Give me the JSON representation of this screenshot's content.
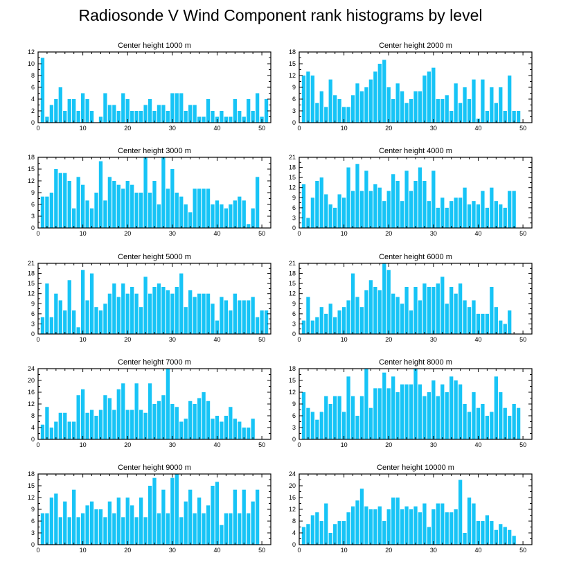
{
  "figure": {
    "title": "Radiosonde V Wind Component rank histograms by level"
  },
  "style": {
    "bar_color": "#17c4f6",
    "axis_color": "#000000",
    "background": "#ffffff"
  },
  "chart_data": [
    {
      "type": "bar",
      "title": "Center height 1000 m",
      "xlabel": "",
      "ylabel": "",
      "xlim": [
        0,
        52
      ],
      "ylim": [
        0,
        12
      ],
      "x_ticks": [
        0,
        10,
        20,
        30,
        40,
        50
      ],
      "y_ticks": [
        0,
        2,
        4,
        6,
        8,
        10,
        12
      ],
      "x": [
        0,
        1,
        2,
        3,
        4,
        5,
        6,
        7,
        8,
        9,
        10,
        11,
        12,
        13,
        14,
        15,
        16,
        17,
        18,
        19,
        20,
        21,
        22,
        23,
        24,
        25,
        26,
        27,
        28,
        29,
        30,
        31,
        32,
        33,
        34,
        35,
        36,
        37,
        38,
        39,
        40,
        41,
        42,
        43,
        44,
        45,
        46,
        47,
        48,
        49,
        50,
        51,
        52
      ],
      "values": [
        0,
        11,
        1,
        3,
        4,
        6,
        2,
        4,
        4,
        2,
        5,
        4,
        2,
        0,
        1,
        5,
        3,
        3,
        2,
        5,
        4,
        2,
        2,
        2,
        3,
        4,
        2,
        3,
        3,
        2,
        5,
        5,
        5,
        2,
        3,
        3,
        1,
        1,
        4,
        2,
        1,
        2,
        1,
        1,
        4,
        2,
        1,
        4,
        2,
        5,
        1,
        4,
        0
      ]
    },
    {
      "type": "bar",
      "title": "Center height 2000 m",
      "xlabel": "",
      "ylabel": "",
      "xlim": [
        0,
        52
      ],
      "ylim": [
        0,
        18
      ],
      "x_ticks": [
        0,
        10,
        20,
        30,
        40,
        50
      ],
      "y_ticks": [
        0,
        3,
        6,
        9,
        12,
        15,
        18
      ],
      "x": [
        0,
        1,
        2,
        3,
        4,
        5,
        6,
        7,
        8,
        9,
        10,
        11,
        12,
        13,
        14,
        15,
        16,
        17,
        18,
        19,
        20,
        21,
        22,
        23,
        24,
        25,
        26,
        27,
        28,
        29,
        30,
        31,
        32,
        33,
        34,
        35,
        36,
        37,
        38,
        39,
        40,
        41,
        42,
        43,
        44,
        45,
        46,
        47,
        48,
        49,
        50,
        51,
        52
      ],
      "values": [
        0,
        12,
        13,
        12,
        5,
        8,
        4,
        11,
        7,
        6,
        4,
        4,
        7,
        10,
        8,
        9,
        11,
        13,
        15,
        16,
        9,
        6,
        10,
        8,
        5,
        6,
        8,
        8,
        12,
        13,
        14,
        6,
        6,
        7,
        3,
        10,
        5,
        9,
        6,
        11,
        1,
        11,
        3,
        9,
        5,
        9,
        3,
        12,
        3,
        3,
        0,
        0,
        0
      ]
    },
    {
      "type": "bar",
      "title": "Center height 3000 m",
      "xlabel": "",
      "ylabel": "",
      "xlim": [
        0,
        52
      ],
      "ylim": [
        0,
        18
      ],
      "x_ticks": [
        0,
        10,
        20,
        30,
        40,
        50
      ],
      "y_ticks": [
        0,
        3,
        6,
        9,
        12,
        15,
        18
      ],
      "x": [
        0,
        1,
        2,
        3,
        4,
        5,
        6,
        7,
        8,
        9,
        10,
        11,
        12,
        13,
        14,
        15,
        16,
        17,
        18,
        19,
        20,
        21,
        22,
        23,
        24,
        25,
        26,
        27,
        28,
        29,
        30,
        31,
        32,
        33,
        34,
        35,
        36,
        37,
        38,
        39,
        40,
        41,
        42,
        43,
        44,
        45,
        46,
        47,
        48,
        49,
        50,
        51,
        52
      ],
      "values": [
        0,
        8,
        8,
        9,
        15,
        14,
        14,
        12,
        5,
        13,
        11,
        7,
        5,
        9,
        17,
        7,
        13,
        12,
        11,
        10,
        12,
        11,
        9,
        9,
        18,
        9,
        12,
        6,
        18,
        10,
        15,
        9,
        8,
        6,
        4,
        10,
        10,
        10,
        10,
        6,
        7,
        6,
        5,
        6,
        7,
        8,
        7,
        1,
        5,
        13,
        0,
        0,
        0
      ]
    },
    {
      "type": "bar",
      "title": "Center height 4000 m",
      "xlabel": "",
      "ylabel": "",
      "xlim": [
        0,
        52
      ],
      "ylim": [
        0,
        21
      ],
      "x_ticks": [
        0,
        10,
        20,
        30,
        40,
        50
      ],
      "y_ticks": [
        0,
        3,
        6,
        9,
        12,
        15,
        18,
        21
      ],
      "x": [
        0,
        1,
        2,
        3,
        4,
        5,
        6,
        7,
        8,
        9,
        10,
        11,
        12,
        13,
        14,
        15,
        16,
        17,
        18,
        19,
        20,
        21,
        22,
        23,
        24,
        25,
        26,
        27,
        28,
        29,
        30,
        31,
        32,
        33,
        34,
        35,
        36,
        37,
        38,
        39,
        40,
        41,
        42,
        43,
        44,
        45,
        46,
        47,
        48,
        49,
        50,
        51,
        52
      ],
      "values": [
        0,
        13,
        3,
        9,
        14,
        15,
        10,
        7,
        6,
        10,
        9,
        18,
        11,
        19,
        11,
        17,
        11,
        13,
        12,
        8,
        11,
        16,
        14,
        8,
        17,
        11,
        14,
        18,
        14,
        8,
        17,
        6,
        9,
        6,
        8,
        9,
        9,
        12,
        7,
        8,
        7,
        11,
        6,
        12,
        8,
        7,
        6,
        11,
        11,
        0,
        0,
        0,
        0
      ]
    },
    {
      "type": "bar",
      "title": "Center height 5000 m",
      "xlabel": "",
      "ylabel": "",
      "xlim": [
        0,
        52
      ],
      "ylim": [
        0,
        21
      ],
      "x_ticks": [
        0,
        10,
        20,
        30,
        40,
        50
      ],
      "y_ticks": [
        0,
        3,
        6,
        9,
        12,
        15,
        18,
        21
      ],
      "x": [
        0,
        1,
        2,
        3,
        4,
        5,
        6,
        7,
        8,
        9,
        10,
        11,
        12,
        13,
        14,
        15,
        16,
        17,
        18,
        19,
        20,
        21,
        22,
        23,
        24,
        25,
        26,
        27,
        28,
        29,
        30,
        31,
        32,
        33,
        34,
        35,
        36,
        37,
        38,
        39,
        40,
        41,
        42,
        43,
        44,
        45,
        46,
        47,
        48,
        49,
        50,
        51,
        52
      ],
      "values": [
        0,
        5,
        15,
        5,
        12,
        10,
        7,
        16,
        7,
        2,
        19,
        10,
        18,
        8,
        7,
        9,
        12,
        15,
        11,
        15,
        12,
        14,
        12,
        8,
        17,
        12,
        14,
        15,
        14,
        13,
        12,
        14,
        18,
        8,
        13,
        11,
        12,
        12,
        12,
        9,
        4,
        11,
        10,
        7,
        12,
        10,
        10,
        10,
        11,
        5,
        7,
        7,
        0
      ]
    },
    {
      "type": "bar",
      "title": "Center height 6000 m",
      "xlabel": "",
      "ylabel": "",
      "xlim": [
        0,
        52
      ],
      "ylim": [
        0,
        21
      ],
      "x_ticks": [
        0,
        10,
        20,
        30,
        40,
        50
      ],
      "y_ticks": [
        0,
        3,
        6,
        9,
        12,
        15,
        18,
        21
      ],
      "x": [
        0,
        1,
        2,
        3,
        4,
        5,
        6,
        7,
        8,
        9,
        10,
        11,
        12,
        13,
        14,
        15,
        16,
        17,
        18,
        19,
        20,
        21,
        22,
        23,
        24,
        25,
        26,
        27,
        28,
        29,
        30,
        31,
        32,
        33,
        34,
        35,
        36,
        37,
        38,
        39,
        40,
        41,
        42,
        43,
        44,
        45,
        46,
        47,
        48,
        49,
        50,
        51,
        52
      ],
      "values": [
        0,
        4,
        11,
        4,
        5,
        8,
        6,
        9,
        5,
        7,
        8,
        10,
        18,
        11,
        8,
        13,
        16,
        14,
        13,
        21,
        19,
        12,
        11,
        9,
        14,
        7,
        14,
        10,
        15,
        14,
        14,
        15,
        17,
        9,
        14,
        12,
        15,
        10,
        8,
        10,
        6,
        6,
        6,
        14,
        8,
        4,
        3,
        7,
        0,
        0,
        0,
        0,
        0
      ]
    },
    {
      "type": "bar",
      "title": "Center height 7000 m",
      "xlabel": "",
      "ylabel": "",
      "xlim": [
        0,
        52
      ],
      "ylim": [
        0,
        24
      ],
      "x_ticks": [
        0,
        10,
        20,
        30,
        40,
        50
      ],
      "y_ticks": [
        0,
        4,
        8,
        12,
        16,
        20,
        24
      ],
      "x": [
        0,
        1,
        2,
        3,
        4,
        5,
        6,
        7,
        8,
        9,
        10,
        11,
        12,
        13,
        14,
        15,
        16,
        17,
        18,
        19,
        20,
        21,
        22,
        23,
        24,
        25,
        26,
        27,
        28,
        29,
        30,
        31,
        32,
        33,
        34,
        35,
        36,
        37,
        38,
        39,
        40,
        41,
        42,
        43,
        44,
        45,
        46,
        47,
        48,
        49,
        50,
        51,
        52
      ],
      "values": [
        0,
        5,
        11,
        4,
        6,
        9,
        9,
        6,
        6,
        15,
        17,
        9,
        10,
        8,
        10,
        15,
        14,
        10,
        17,
        19,
        10,
        10,
        19,
        10,
        9,
        19,
        12,
        13,
        15,
        24,
        12,
        11,
        6,
        7,
        13,
        12,
        14,
        16,
        13,
        7,
        8,
        6,
        8,
        11,
        7,
        6,
        4,
        4,
        7,
        0,
        0,
        0,
        0
      ]
    },
    {
      "type": "bar",
      "title": "Center height 8000 m",
      "xlabel": "",
      "ylabel": "",
      "xlim": [
        0,
        52
      ],
      "ylim": [
        0,
        18
      ],
      "x_ticks": [
        0,
        10,
        20,
        30,
        40,
        50
      ],
      "y_ticks": [
        0,
        3,
        6,
        9,
        12,
        15,
        18
      ],
      "x": [
        0,
        1,
        2,
        3,
        4,
        5,
        6,
        7,
        8,
        9,
        10,
        11,
        12,
        13,
        14,
        15,
        16,
        17,
        18,
        19,
        20,
        21,
        22,
        23,
        24,
        25,
        26,
        27,
        28,
        29,
        30,
        31,
        32,
        33,
        34,
        35,
        36,
        37,
        38,
        39,
        40,
        41,
        42,
        43,
        44,
        45,
        46,
        47,
        48,
        49,
        50,
        51,
        52
      ],
      "values": [
        0,
        12,
        8,
        7,
        5,
        7,
        11,
        9,
        11,
        11,
        7,
        16,
        11,
        6,
        11,
        18,
        8,
        13,
        13,
        17,
        13,
        16,
        12,
        14,
        14,
        14,
        18,
        14,
        11,
        12,
        15,
        11,
        14,
        12,
        16,
        15,
        14,
        9,
        7,
        12,
        8,
        9,
        6,
        7,
        16,
        12,
        8,
        6,
        9,
        8,
        0,
        0,
        0
      ]
    },
    {
      "type": "bar",
      "title": "Center height 9000 m",
      "xlabel": "",
      "ylabel": "",
      "xlim": [
        0,
        52
      ],
      "ylim": [
        0,
        18
      ],
      "x_ticks": [
        0,
        10,
        20,
        30,
        40,
        50
      ],
      "y_ticks": [
        0,
        3,
        6,
        9,
        12,
        15,
        18
      ],
      "x": [
        0,
        1,
        2,
        3,
        4,
        5,
        6,
        7,
        8,
        9,
        10,
        11,
        12,
        13,
        14,
        15,
        16,
        17,
        18,
        19,
        20,
        21,
        22,
        23,
        24,
        25,
        26,
        27,
        28,
        29,
        30,
        31,
        32,
        33,
        34,
        35,
        36,
        37,
        38,
        39,
        40,
        41,
        42,
        43,
        44,
        45,
        46,
        47,
        48,
        49,
        50,
        51,
        52
      ],
      "values": [
        0,
        8,
        8,
        12,
        13,
        7,
        11,
        7,
        14,
        7,
        8,
        10,
        11,
        9,
        9,
        7,
        11,
        8,
        12,
        7,
        12,
        10,
        7,
        12,
        7,
        15,
        17,
        8,
        14,
        8,
        17,
        18,
        7,
        11,
        14,
        8,
        12,
        8,
        10,
        15,
        16,
        5,
        8,
        8,
        14,
        8,
        14,
        8,
        11,
        14,
        0,
        0,
        0
      ]
    },
    {
      "type": "bar",
      "title": "Center height 10000 m",
      "xlabel": "",
      "ylabel": "",
      "xlim": [
        0,
        52
      ],
      "ylim": [
        0,
        24
      ],
      "x_ticks": [
        0,
        10,
        20,
        30,
        40,
        50
      ],
      "y_ticks": [
        0,
        4,
        8,
        12,
        16,
        20,
        24
      ],
      "x": [
        0,
        1,
        2,
        3,
        4,
        5,
        6,
        7,
        8,
        9,
        10,
        11,
        12,
        13,
        14,
        15,
        16,
        17,
        18,
        19,
        20,
        21,
        22,
        23,
        24,
        25,
        26,
        27,
        28,
        29,
        30,
        31,
        32,
        33,
        34,
        35,
        36,
        37,
        38,
        39,
        40,
        41,
        42,
        43,
        44,
        45,
        46,
        47,
        48,
        49,
        50,
        51,
        52
      ],
      "values": [
        0,
        6,
        7,
        10,
        11,
        8,
        14,
        4,
        7,
        8,
        8,
        11,
        13,
        15,
        19,
        13,
        12,
        12,
        13,
        8,
        12,
        16,
        16,
        12,
        13,
        12,
        13,
        11,
        14,
        6,
        12,
        14,
        14,
        11,
        11,
        12,
        22,
        4,
        16,
        14,
        8,
        8,
        10,
        8,
        5,
        7,
        6,
        5,
        3,
        0,
        0,
        0,
        0
      ]
    }
  ]
}
